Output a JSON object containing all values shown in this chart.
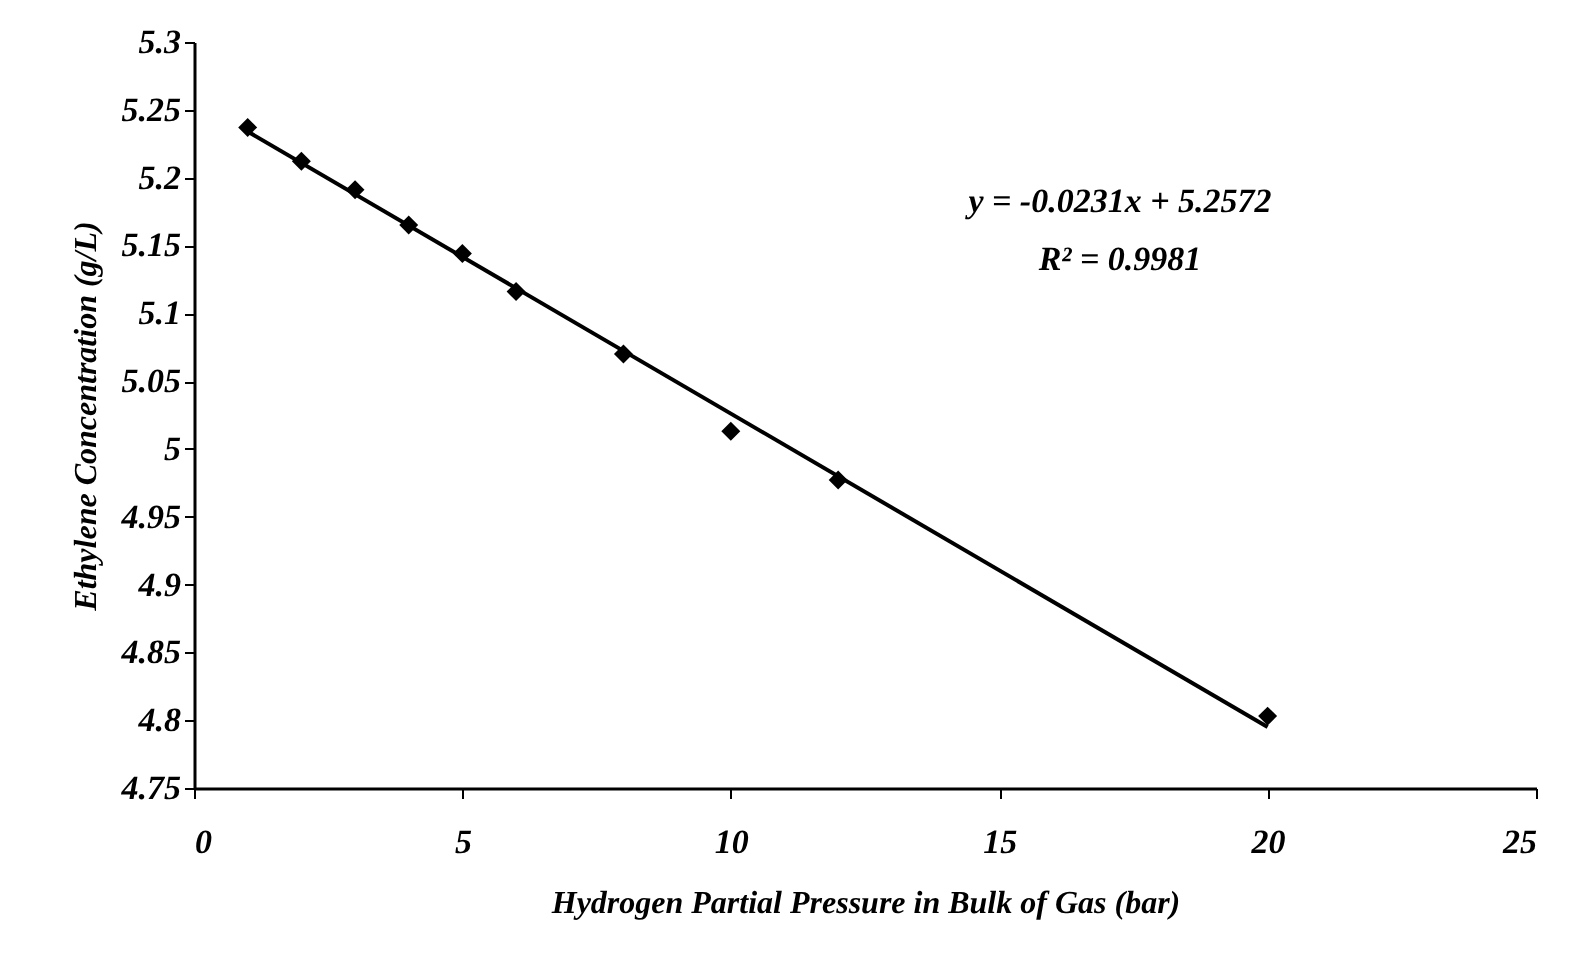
{
  "chart_data": {
    "type": "scatter",
    "xlabel": "Hydrogen Partial Pressure in Bulk of Gas (bar)",
    "ylabel": "Ethylene Concentration (g/L)",
    "annotations": [
      "y = -0.0231x + 5.2572",
      "R² = 0.9981"
    ],
    "xlim": [
      0,
      25
    ],
    "xticks": [
      0,
      5,
      10,
      15,
      20,
      25
    ],
    "ylim": [
      4.75,
      5.3
    ],
    "yticks": [
      4.75,
      4.8,
      4.85,
      4.9,
      4.95,
      5,
      5.05,
      5.1,
      5.15,
      5.2,
      5.25,
      5.3
    ],
    "grid": false,
    "legend": false,
    "marker": "diamond",
    "series": [
      {
        "color": "#000000",
        "x": [
          1,
          2,
          3,
          4,
          5,
          6,
          8,
          10,
          12,
          20
        ],
        "values": [
          5.237,
          5.212,
          5.191,
          5.165,
          5.144,
          5.116,
          5.07,
          5.013,
          4.977,
          4.803
        ]
      },
      {
        "type": "line",
        "color": "#000000",
        "line_style": "solid",
        "marker": "none",
        "x": [
          1,
          20
        ],
        "values": [
          5.234,
          4.795
        ]
      }
    ]
  }
}
